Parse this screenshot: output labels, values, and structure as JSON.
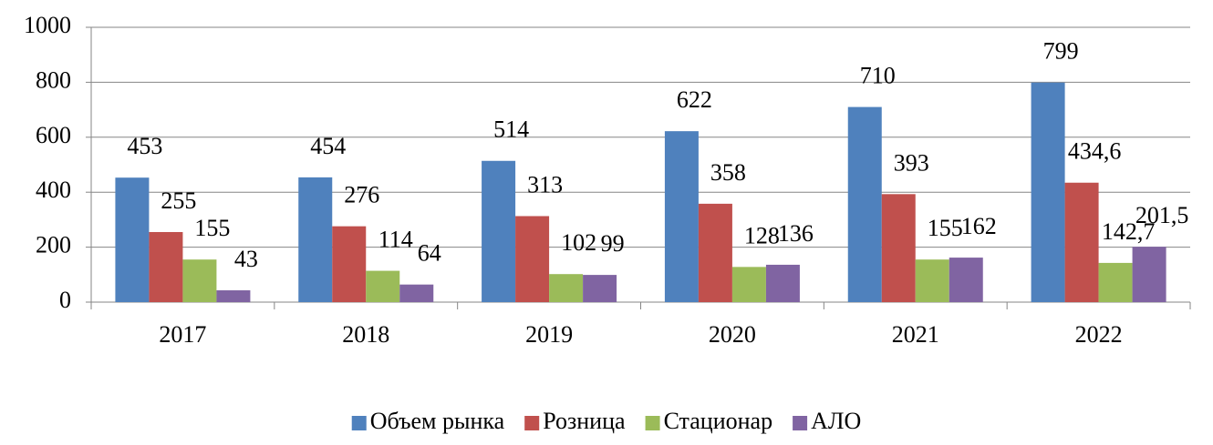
{
  "chart_data": {
    "type": "bar",
    "categories": [
      "2017",
      "2018",
      "2019",
      "2020",
      "2021",
      "2022"
    ],
    "series": [
      {
        "name": "Объем рынка",
        "color": "#4f81bd",
        "values": [
          453,
          454,
          514,
          622,
          710,
          799
        ]
      },
      {
        "name": "Розница",
        "color": "#c0504d",
        "values": [
          255,
          276,
          313,
          358,
          393,
          434.6
        ],
        "value_labels": [
          "255",
          "276",
          "313",
          "358",
          "393",
          "434,6"
        ]
      },
      {
        "name": "Стационар",
        "color": "#9bbb59",
        "values": [
          155,
          114,
          102,
          128,
          155,
          142.7
        ],
        "value_labels": [
          "155",
          "114",
          "102",
          "128",
          "155",
          "142,7"
        ]
      },
      {
        "name": "АЛО",
        "color": "#8064a2",
        "values": [
          43,
          64,
          99,
          136,
          162,
          201.5
        ],
        "value_labels": [
          "43",
          "64",
          "99",
          "136",
          "162",
          "201,5"
        ]
      }
    ],
    "ylim": [
      0,
      1000
    ],
    "yticks": [
      0,
      200,
      400,
      600,
      800,
      1000
    ],
    "grid": true,
    "legend": "bottom"
  }
}
